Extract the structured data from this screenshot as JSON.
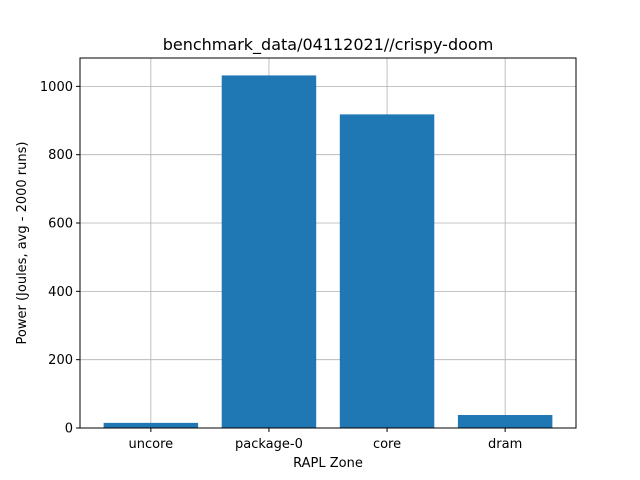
{
  "chart_data": {
    "type": "bar",
    "title": "benchmark_data/04112021//crispy-doom",
    "xlabel": "RAPL Zone",
    "ylabel": "Power (Joules, avg - 2000 runs)",
    "categories": [
      "uncore",
      "package-0",
      "core",
      "dram"
    ],
    "values": [
      15,
      1032,
      918,
      38
    ],
    "ylim": [
      0,
      1083
    ],
    "yticks": [
      0,
      200,
      400,
      600,
      800,
      1000
    ],
    "grid": true,
    "bar_color": "#1f77b4"
  }
}
